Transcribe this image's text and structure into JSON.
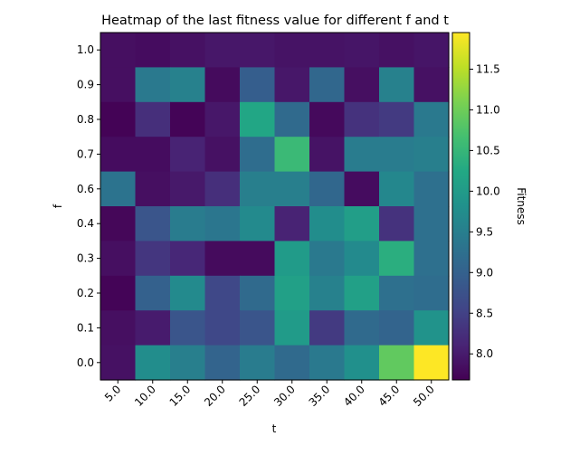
{
  "chart_data": {
    "type": "heatmap",
    "title": "Heatmap of the last fitness value for different f and t",
    "xlabel": "t",
    "ylabel": "f",
    "x_categories": [
      "5.0",
      "10.0",
      "15.0",
      "20.0",
      "25.0",
      "30.0",
      "35.0",
      "40.0",
      "45.0",
      "50.0"
    ],
    "y_categories": [
      "1.0",
      "0.9",
      "0.8",
      "0.7",
      "0.6",
      "0.4",
      "0.3",
      "0.2",
      "0.1",
      "0.0"
    ],
    "values": [
      [
        7.85,
        7.82,
        7.87,
        7.95,
        7.95,
        7.9,
        7.9,
        7.93,
        7.88,
        7.93
      ],
      [
        7.85,
        9.4,
        9.55,
        7.8,
        8.95,
        7.95,
        9.1,
        7.85,
        9.55,
        7.88
      ],
      [
        7.7,
        8.25,
        7.72,
        7.95,
        10.2,
        9.15,
        7.78,
        8.3,
        8.4,
        9.4
      ],
      [
        7.82,
        7.82,
        8.1,
        7.88,
        9.2,
        10.55,
        7.9,
        9.45,
        9.45,
        9.5
      ],
      [
        9.3,
        7.85,
        7.97,
        8.25,
        9.5,
        9.5,
        9.1,
        7.82,
        9.65,
        9.25
      ],
      [
        7.75,
        8.8,
        9.45,
        9.35,
        9.7,
        8.1,
        9.75,
        10.05,
        8.3,
        9.25
      ],
      [
        7.85,
        8.35,
        8.15,
        7.8,
        7.8,
        10.0,
        9.4,
        9.7,
        10.35,
        9.25
      ],
      [
        7.72,
        9.0,
        9.7,
        8.6,
        9.15,
        10.1,
        9.55,
        10.1,
        9.25,
        9.2
      ],
      [
        7.85,
        8.0,
        8.8,
        8.6,
        8.8,
        10.0,
        8.4,
        9.15,
        9.05,
        9.85
      ],
      [
        7.88,
        9.75,
        9.5,
        9.05,
        9.45,
        9.15,
        9.4,
        9.8,
        10.9,
        11.95
      ]
    ],
    "colormap": "viridis",
    "vmin": 7.68,
    "vmax": 11.95,
    "colorbar": {
      "label": "Fitness",
      "ticks": [
        "8.0",
        "8.5",
        "9.0",
        "9.5",
        "10.0",
        "10.5",
        "11.0",
        "11.5"
      ]
    },
    "grid": false,
    "legend": "none"
  }
}
